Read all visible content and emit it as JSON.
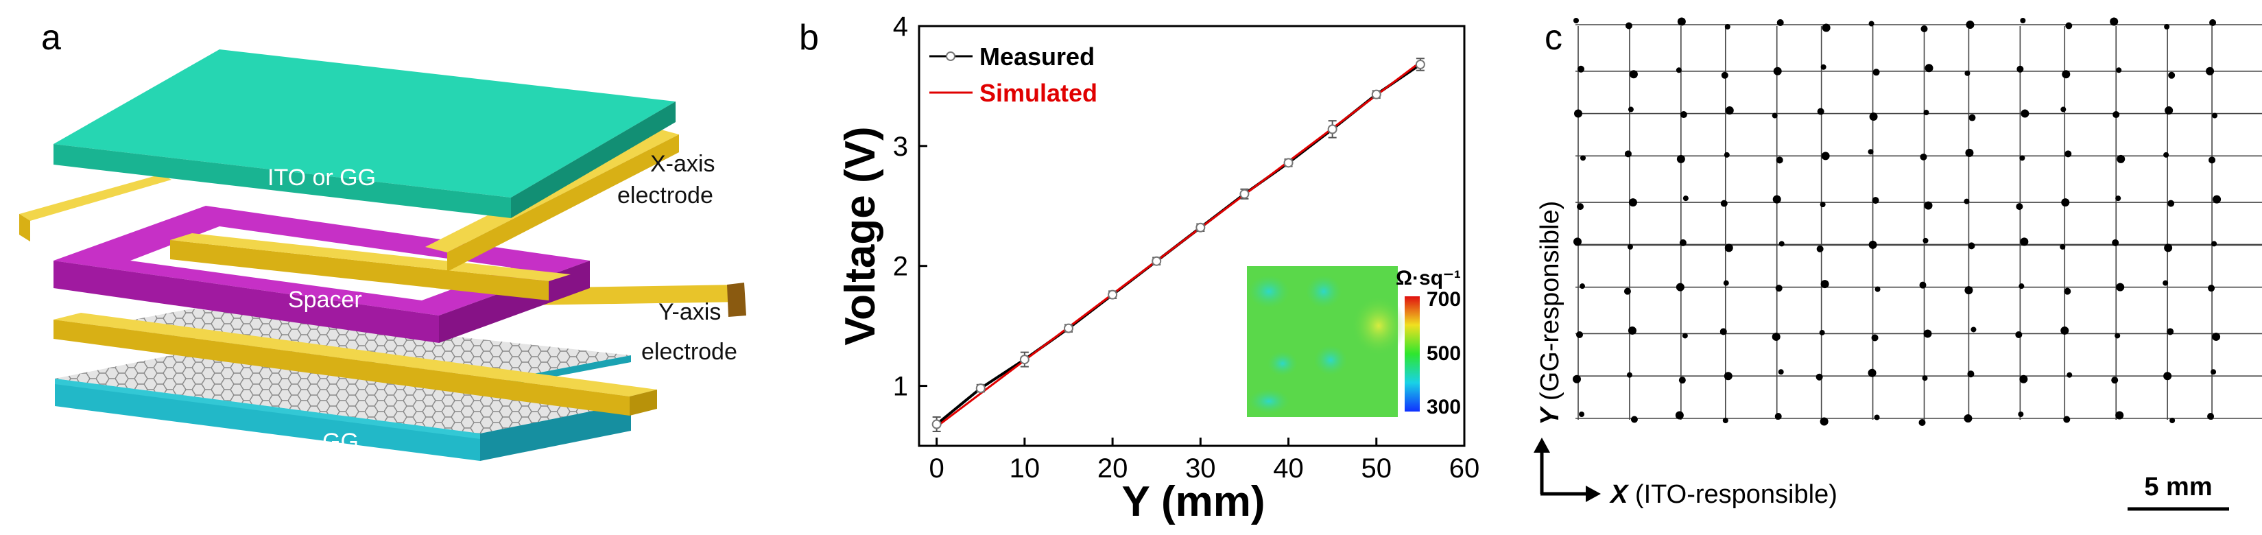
{
  "panels": {
    "a": {
      "label": "a",
      "layers": {
        "top": "ITO or GG",
        "spacer": "Spacer",
        "bottom": "GG"
      },
      "electrodes": {
        "x_line1": "X-axis",
        "x_line2": "electrode",
        "y_line1": "Y-axis",
        "y_line2": "electrode"
      },
      "colors": {
        "top_layer": "#1fc9a4",
        "spacer": "#b519b5",
        "electrode": "#e6c21a",
        "bottom_layer": "#22b8c8"
      }
    },
    "b": {
      "label": "b",
      "inset": {
        "unit": "Ω·sq⁻¹",
        "ticks": [
          "700",
          "500",
          "300"
        ]
      }
    },
    "c": {
      "label": "c",
      "y_axis_italic": "Y",
      "y_axis_rest": " (GG-responsible)",
      "x_axis_italic": "X",
      "x_axis_rest": " (ITO-responsible)",
      "scale_bar": "5 mm"
    }
  },
  "chart_data": {
    "type": "line",
    "title": "",
    "xlabel": "Y (mm)",
    "ylabel": "Voltage (V)",
    "xlim": [
      -2,
      60
    ],
    "ylim": [
      0.5,
      4
    ],
    "xticks": [
      "0",
      "10",
      "20",
      "30",
      "40",
      "50",
      "60"
    ],
    "yticks": [
      "1",
      "2",
      "3",
      "4"
    ],
    "legend": [
      "Measured",
      "Simulated"
    ],
    "legend_position": "top-left",
    "series": [
      {
        "name": "Measured",
        "color": "#000000",
        "x": [
          0,
          5,
          10,
          15,
          20,
          25,
          30,
          35,
          40,
          45,
          50,
          55
        ],
        "y": [
          0.68,
          0.98,
          1.22,
          1.48,
          1.76,
          2.04,
          2.32,
          2.6,
          2.86,
          3.14,
          3.43,
          3.68
        ],
        "err": [
          0.06,
          0.03,
          0.06,
          0.03,
          0.03,
          0.03,
          0.03,
          0.04,
          0.03,
          0.07,
          0.03,
          0.05
        ]
      },
      {
        "name": "Simulated",
        "color": "#e00000",
        "x": [
          0,
          55
        ],
        "y": [
          0.66,
          3.7
        ]
      }
    ]
  }
}
